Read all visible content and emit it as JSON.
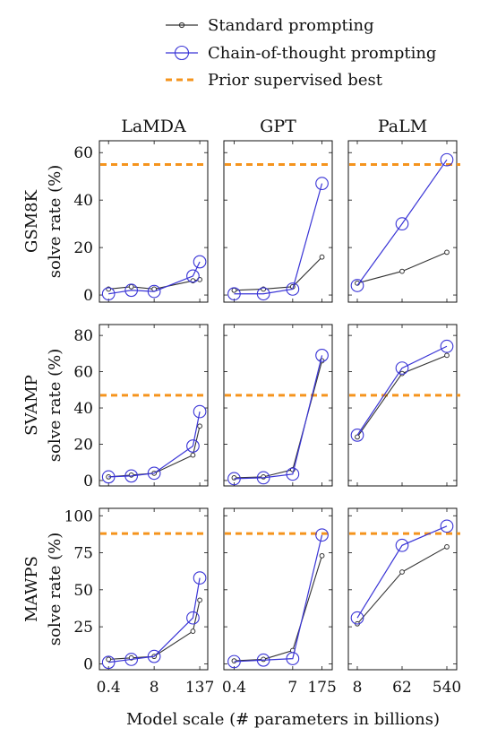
{
  "chart_data": {
    "type": "line",
    "xlabel": "Model scale (# parameters in billions)",
    "legend": {
      "placement": "top-right",
      "entries": [
        {
          "label": "Standard prompting",
          "color": "#333333",
          "marker": "small-circle"
        },
        {
          "label": "Chain-of-thought prompting",
          "color": "#3a35d6",
          "marker": "large-circle"
        },
        {
          "label": "Prior supervised best",
          "color": "#f5941d",
          "marker": "dashed-line"
        }
      ]
    },
    "columns": [
      {
        "title": "LaMDA",
        "x_tick_labels": [
          "0.4",
          "8",
          "137"
        ],
        "x_tick_positions": [
          0,
          2,
          4
        ]
      },
      {
        "title": "GPT",
        "x_tick_labels": [
          "0.4",
          "7",
          "175"
        ],
        "x_tick_positions": [
          0,
          2,
          3
        ]
      },
      {
        "title": "PaLM",
        "x_tick_labels": [
          "8",
          "62",
          "540"
        ],
        "x_tick_positions": [
          0,
          1,
          2
        ]
      }
    ],
    "rows": [
      {
        "label_line1": "GSM8K",
        "label_line2": "solve rate (%)",
        "ylim": [
          -3,
          65
        ],
        "yticks": [
          0,
          20,
          40,
          60
        ],
        "supervised_best": 55,
        "panels": [
          {
            "x": [
              0,
              1,
              2,
              3.7,
              4
            ],
            "standard": [
              2.5,
              3.5,
              2.5,
              6,
              6.5
            ],
            "cot": [
              0.5,
              2,
              1.5,
              8,
              14
            ]
          },
          {
            "x": [
              0,
              1,
              2,
              3
            ],
            "standard": [
              2,
              2.5,
              3.5,
              16
            ],
            "cot": [
              0.5,
              0.5,
              2.5,
              47
            ]
          },
          {
            "x": [
              0,
              1,
              2
            ],
            "standard": [
              5,
              10,
              18
            ],
            "cot": [
              4,
              30,
              57
            ]
          }
        ]
      },
      {
        "label_line1": "SVAMP",
        "label_line2": "solve rate (%)",
        "ylim": [
          -3,
          86
        ],
        "yticks": [
          0,
          20,
          40,
          60,
          80
        ],
        "supervised_best": 47,
        "panels": [
          {
            "x": [
              0,
              1,
              2,
              3.7,
              4
            ],
            "standard": [
              2,
              3,
              4,
              14,
              30
            ],
            "cot": [
              2,
              2.5,
              4,
              19,
              38
            ]
          },
          {
            "x": [
              0,
              1,
              2,
              3
            ],
            "standard": [
              1.5,
              2,
              6,
              66
            ],
            "cot": [
              1,
              1.5,
              3.5,
              69
            ]
          },
          {
            "x": [
              0,
              1,
              2
            ],
            "standard": [
              24,
              59,
              69
            ],
            "cot": [
              25,
              62,
              74
            ]
          }
        ]
      },
      {
        "label_line1": "MAWPS",
        "label_line2": "solve rate (%)",
        "ylim": [
          -4,
          105
        ],
        "yticks": [
          0,
          25,
          50,
          75,
          100
        ],
        "supervised_best": 88,
        "panels": [
          {
            "x": [
              0,
              1,
              2,
              3.7,
              4
            ],
            "standard": [
              3,
              4,
              5,
              22,
              43
            ],
            "cot": [
              1,
              3,
              5,
              31,
              58
            ]
          },
          {
            "x": [
              0,
              1,
              2,
              3
            ],
            "standard": [
              2,
              3,
              9,
              73
            ],
            "cot": [
              1.5,
              2.5,
              3.5,
              87
            ]
          },
          {
            "x": [
              0,
              1,
              2
            ],
            "standard": [
              27,
              62,
              79
            ],
            "cot": [
              31,
              80,
              93
            ]
          }
        ]
      }
    ]
  }
}
